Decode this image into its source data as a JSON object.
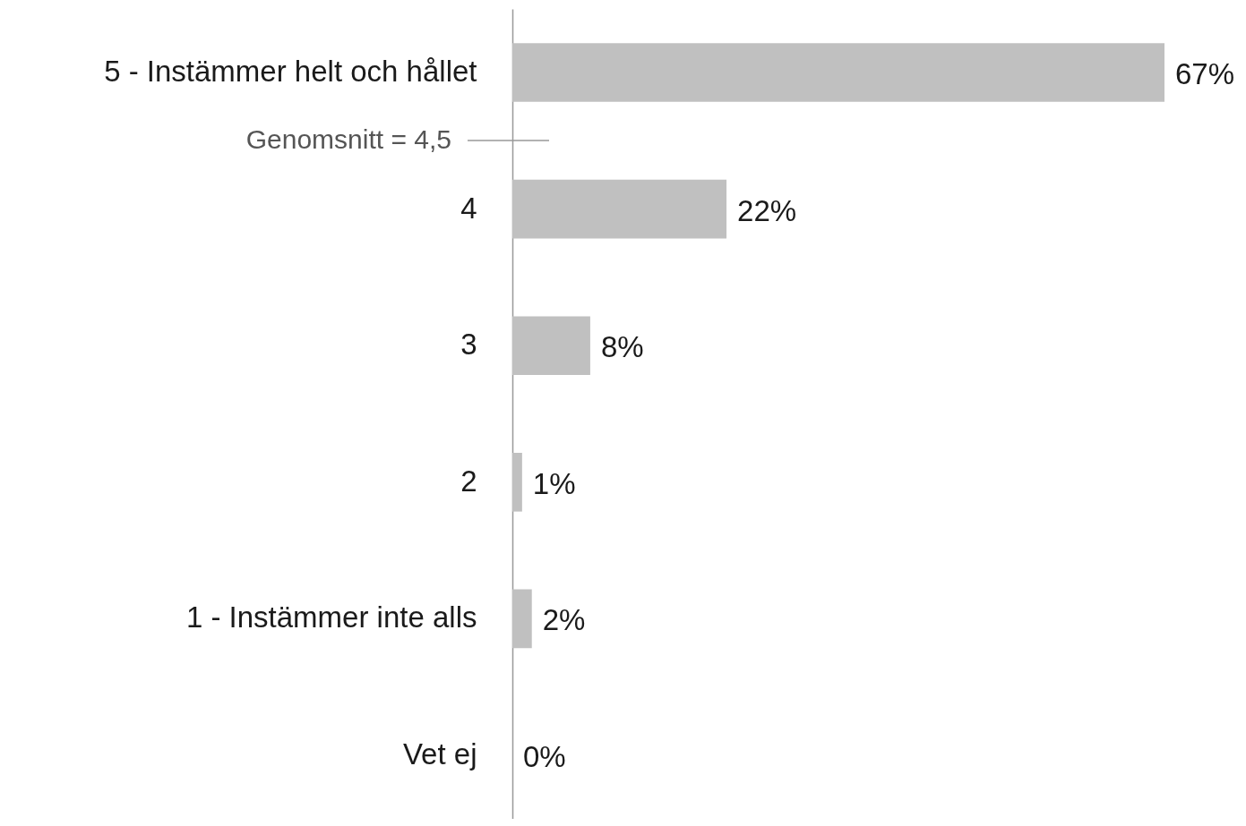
{
  "chart_data": {
    "type": "bar",
    "orientation": "horizontal",
    "categories": [
      "5 - Instämmer helt och hållet",
      "4",
      "3",
      "2",
      "1 - Instämmer inte alls",
      "Vet ej"
    ],
    "values": [
      67,
      22,
      8,
      1,
      2,
      0
    ],
    "value_labels": [
      "67%",
      "22%",
      "8%",
      "1%",
      "2%",
      "0%"
    ],
    "color": "#c0c0c0",
    "annotations": [
      "Genomsnitt = 4,5"
    ]
  }
}
